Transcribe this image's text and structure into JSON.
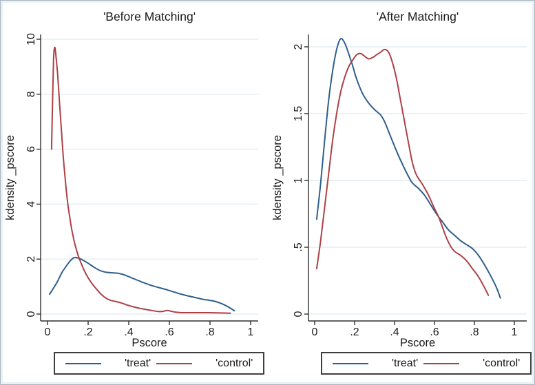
{
  "figure": {
    "background": "#ffffff",
    "edge_tint": "#e9f1f6",
    "border_color": "#a9b6bd"
  },
  "colors": {
    "grid": "#e4eef4",
    "axis": "#2f2f2f",
    "text": "#1a1a1a",
    "legend_border": "#3f3f3f",
    "treat": "#2d5f8c",
    "control": "#ad4046"
  },
  "chart_data": [
    {
      "type": "line",
      "title": "'Before Matching'",
      "xlabel": "Pscore",
      "ylabel": "kdensity _pscore",
      "xlim": [
        0,
        1
      ],
      "ylim": [
        0,
        10.4
      ],
      "xticks": [
        0,
        0.2,
        0.4,
        0.6,
        0.8,
        1
      ],
      "xtick_labels": [
        "0",
        ".2",
        ".4",
        ".6",
        ".8",
        "1"
      ],
      "yticks": [
        0,
        2,
        4,
        6,
        8,
        10
      ],
      "ytick_labels": [
        "0",
        "2",
        "4",
        "6",
        "8",
        "10"
      ],
      "grid": true,
      "legend_position": "bottom",
      "series": [
        {
          "name": "'treat'",
          "color": "#2d5f8c",
          "points": [
            [
              0.01,
              0.72
            ],
            [
              0.03,
              0.95
            ],
            [
              0.05,
              1.2
            ],
            [
              0.07,
              1.5
            ],
            [
              0.09,
              1.72
            ],
            [
              0.11,
              1.92
            ],
            [
              0.13,
              2.05
            ],
            [
              0.15,
              2.04
            ],
            [
              0.17,
              1.98
            ],
            [
              0.2,
              1.85
            ],
            [
              0.23,
              1.7
            ],
            [
              0.26,
              1.58
            ],
            [
              0.29,
              1.52
            ],
            [
              0.32,
              1.5
            ],
            [
              0.35,
              1.48
            ],
            [
              0.38,
              1.42
            ],
            [
              0.41,
              1.33
            ],
            [
              0.44,
              1.24
            ],
            [
              0.47,
              1.15
            ],
            [
              0.5,
              1.07
            ],
            [
              0.53,
              1.0
            ],
            [
              0.56,
              0.94
            ],
            [
              0.59,
              0.88
            ],
            [
              0.62,
              0.81
            ],
            [
              0.65,
              0.74
            ],
            [
              0.68,
              0.68
            ],
            [
              0.71,
              0.63
            ],
            [
              0.74,
              0.58
            ],
            [
              0.77,
              0.53
            ],
            [
              0.8,
              0.5
            ],
            [
              0.83,
              0.45
            ],
            [
              0.86,
              0.37
            ],
            [
              0.89,
              0.26
            ],
            [
              0.92,
              0.12
            ]
          ]
        },
        {
          "name": "'control'",
          "color": "#ad4046",
          "points": [
            [
              0.02,
              6.0
            ],
            [
              0.025,
              7.8
            ],
            [
              0.03,
              9.3
            ],
            [
              0.035,
              9.7
            ],
            [
              0.04,
              9.5
            ],
            [
              0.05,
              8.7
            ],
            [
              0.06,
              7.6
            ],
            [
              0.07,
              6.5
            ],
            [
              0.08,
              5.5
            ],
            [
              0.09,
              4.7
            ],
            [
              0.1,
              4.0
            ],
            [
              0.11,
              3.5
            ],
            [
              0.12,
              3.05
            ],
            [
              0.13,
              2.7
            ],
            [
              0.14,
              2.4
            ],
            [
              0.15,
              2.15
            ],
            [
              0.16,
              1.95
            ],
            [
              0.18,
              1.6
            ],
            [
              0.2,
              1.32
            ],
            [
              0.22,
              1.1
            ],
            [
              0.24,
              0.92
            ],
            [
              0.26,
              0.75
            ],
            [
              0.28,
              0.62
            ],
            [
              0.3,
              0.53
            ],
            [
              0.32,
              0.48
            ],
            [
              0.34,
              0.45
            ],
            [
              0.36,
              0.41
            ],
            [
              0.38,
              0.36
            ],
            [
              0.4,
              0.31
            ],
            [
              0.43,
              0.25
            ],
            [
              0.46,
              0.2
            ],
            [
              0.49,
              0.16
            ],
            [
              0.52,
              0.12
            ],
            [
              0.55,
              0.09
            ],
            [
              0.57,
              0.1
            ],
            [
              0.59,
              0.13
            ],
            [
              0.61,
              0.1
            ],
            [
              0.63,
              0.07
            ],
            [
              0.66,
              0.05
            ],
            [
              0.7,
              0.05
            ],
            [
              0.75,
              0.05
            ],
            [
              0.8,
              0.05
            ],
            [
              0.85,
              0.04
            ],
            [
              0.9,
              0.03
            ]
          ]
        }
      ]
    },
    {
      "type": "line",
      "title": "'After Matching'",
      "xlabel": "Pscore",
      "ylabel": "kdensity _pscore",
      "xlim": [
        0,
        1
      ],
      "ylim": [
        0,
        2.1
      ],
      "xticks": [
        0,
        0.2,
        0.4,
        0.6,
        0.8,
        1
      ],
      "xtick_labels": [
        "0",
        ".2",
        ".4",
        ".6",
        ".8",
        "1"
      ],
      "yticks": [
        0,
        0.5,
        1,
        1.5,
        2
      ],
      "ytick_labels": [
        "0",
        ".5",
        "1",
        "1.5",
        "2"
      ],
      "grid": true,
      "legend_position": "bottom",
      "series": [
        {
          "name": "'treat'",
          "color": "#2d5f8c",
          "points": [
            [
              0.01,
              0.71
            ],
            [
              0.03,
              0.98
            ],
            [
              0.05,
              1.3
            ],
            [
              0.07,
              1.6
            ],
            [
              0.09,
              1.82
            ],
            [
              0.11,
              1.98
            ],
            [
              0.13,
              2.06
            ],
            [
              0.15,
              2.03
            ],
            [
              0.17,
              1.95
            ],
            [
              0.19,
              1.86
            ],
            [
              0.21,
              1.76
            ],
            [
              0.24,
              1.65
            ],
            [
              0.27,
              1.58
            ],
            [
              0.3,
              1.53
            ],
            [
              0.33,
              1.49
            ],
            [
              0.35,
              1.44
            ],
            [
              0.38,
              1.33
            ],
            [
              0.41,
              1.22
            ],
            [
              0.44,
              1.12
            ],
            [
              0.47,
              1.03
            ],
            [
              0.49,
              0.98
            ],
            [
              0.52,
              0.94
            ],
            [
              0.55,
              0.89
            ],
            [
              0.58,
              0.82
            ],
            [
              0.61,
              0.75
            ],
            [
              0.64,
              0.69
            ],
            [
              0.67,
              0.63
            ],
            [
              0.7,
              0.59
            ],
            [
              0.73,
              0.55
            ],
            [
              0.76,
              0.52
            ],
            [
              0.79,
              0.49
            ],
            [
              0.82,
              0.44
            ],
            [
              0.85,
              0.37
            ],
            [
              0.88,
              0.29
            ],
            [
              0.91,
              0.2
            ],
            [
              0.93,
              0.12
            ]
          ]
        },
        {
          "name": "'control'",
          "color": "#ad4046",
          "points": [
            [
              0.01,
              0.34
            ],
            [
              0.03,
              0.55
            ],
            [
              0.05,
              0.8
            ],
            [
              0.07,
              1.05
            ],
            [
              0.09,
              1.3
            ],
            [
              0.11,
              1.5
            ],
            [
              0.13,
              1.66
            ],
            [
              0.15,
              1.77
            ],
            [
              0.17,
              1.85
            ],
            [
              0.19,
              1.9
            ],
            [
              0.21,
              1.94
            ],
            [
              0.23,
              1.95
            ],
            [
              0.25,
              1.93
            ],
            [
              0.27,
              1.91
            ],
            [
              0.29,
              1.92
            ],
            [
              0.31,
              1.94
            ],
            [
              0.33,
              1.96
            ],
            [
              0.35,
              1.98
            ],
            [
              0.37,
              1.96
            ],
            [
              0.39,
              1.88
            ],
            [
              0.41,
              1.76
            ],
            [
              0.43,
              1.6
            ],
            [
              0.45,
              1.44
            ],
            [
              0.47,
              1.28
            ],
            [
              0.49,
              1.13
            ],
            [
              0.51,
              1.04
            ],
            [
              0.54,
              0.97
            ],
            [
              0.57,
              0.89
            ],
            [
              0.6,
              0.79
            ],
            [
              0.62,
              0.73
            ],
            [
              0.64,
              0.65
            ],
            [
              0.66,
              0.57
            ],
            [
              0.68,
              0.51
            ],
            [
              0.7,
              0.47
            ],
            [
              0.73,
              0.44
            ],
            [
              0.76,
              0.4
            ],
            [
              0.79,
              0.34
            ],
            [
              0.82,
              0.28
            ],
            [
              0.85,
              0.2
            ],
            [
              0.87,
              0.14
            ]
          ]
        }
      ]
    }
  ]
}
